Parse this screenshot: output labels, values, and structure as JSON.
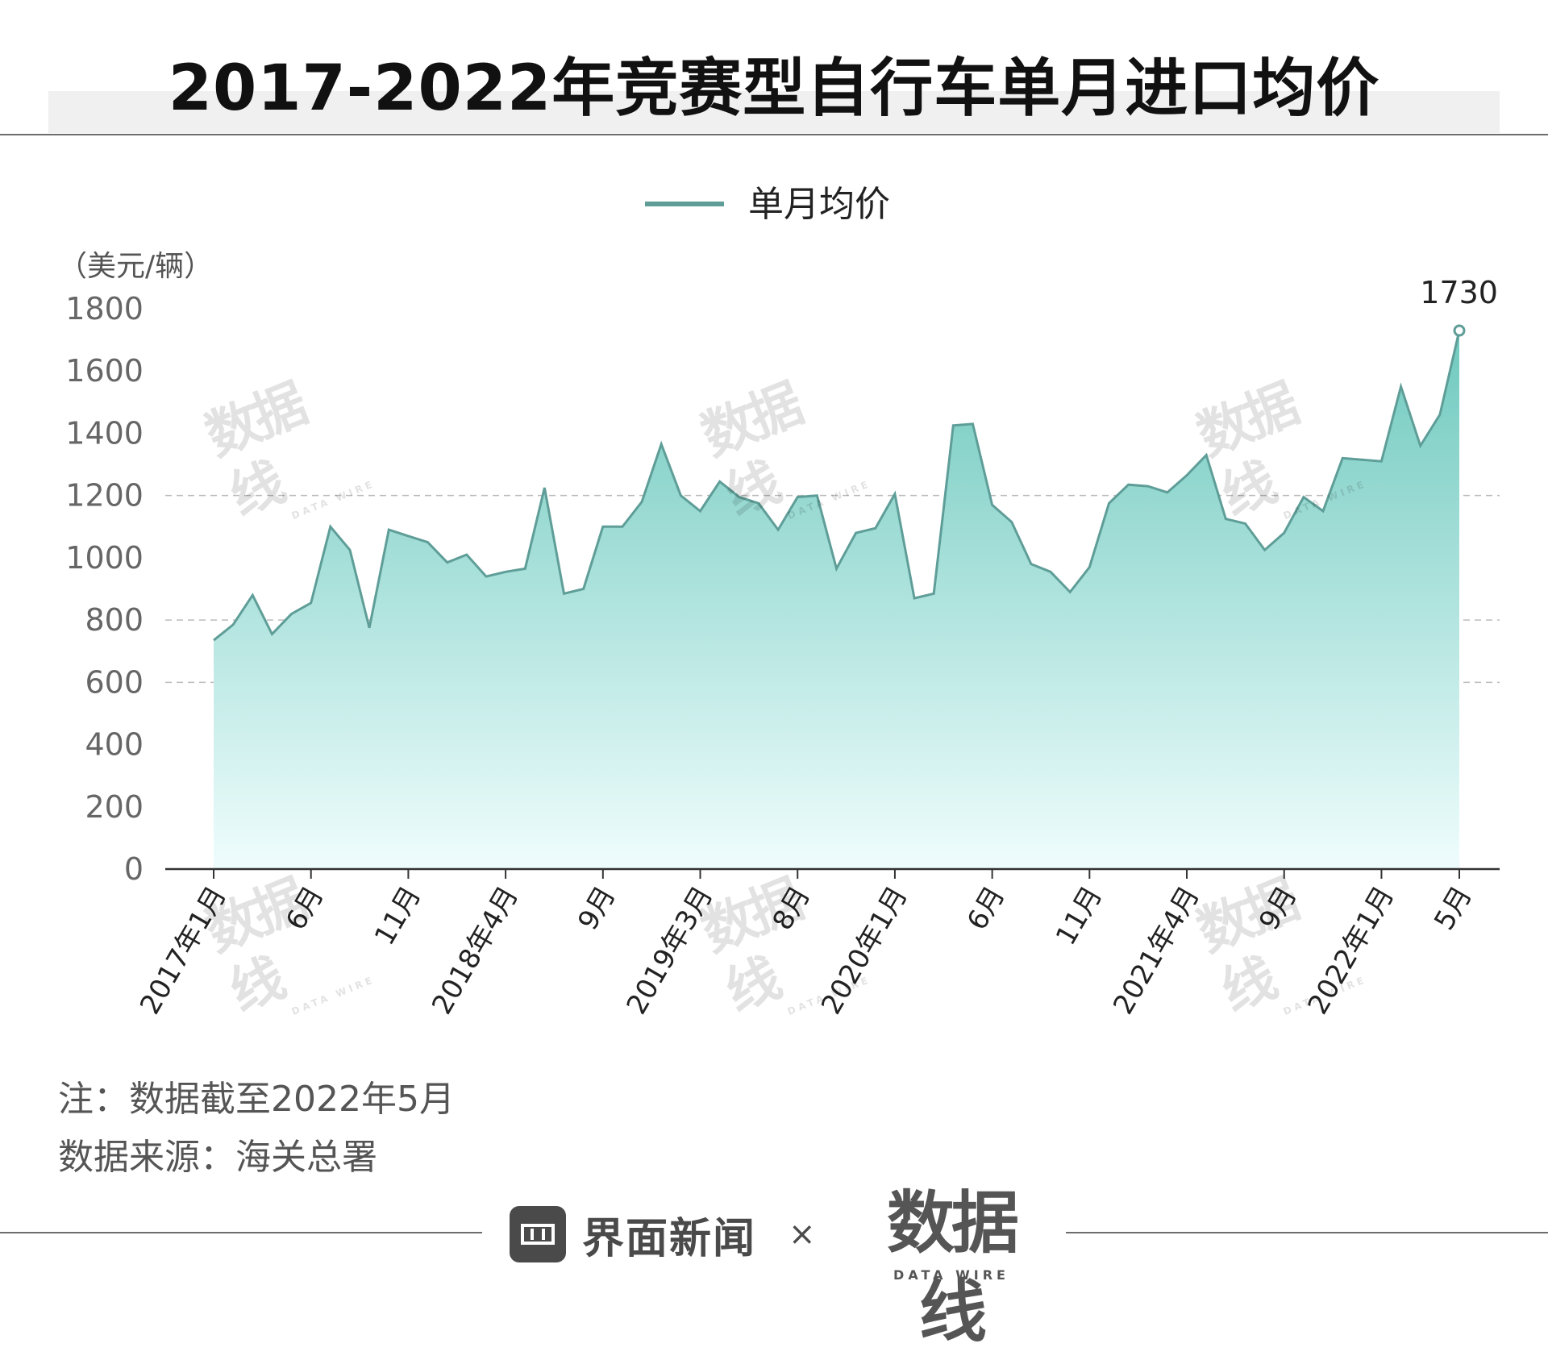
{
  "title": "2017-2022年竞赛型自行车单月进口均价",
  "notes": {
    "line1": "注：数据截至2022年5月",
    "line2": "数据来源：海关总署"
  },
  "footer": {
    "brand": "界面新闻",
    "times": "×",
    "datawire": "数据线",
    "datawire_sub": "DATA WIRE"
  },
  "watermark": {
    "main": "数据线",
    "sub": "DATA WIRE"
  },
  "colors": {
    "line": "#5f9e98",
    "fill_top": "#6fc9be",
    "fill_bottom": "#effdfd",
    "axis": "#333333",
    "grid": "#bbbbbb",
    "tick_text": "#666666"
  },
  "chart_data": {
    "type": "area",
    "unit_label": "（美元/辆）",
    "legend": {
      "label": "单月均价",
      "position": "top-center"
    },
    "ylim": [
      0,
      1800
    ],
    "yticks": [
      "0",
      "200",
      "400",
      "600",
      "800",
      "1000",
      "1200",
      "1400",
      "1600",
      "1800"
    ],
    "grid_lines": [
      600,
      800,
      1200
    ],
    "x_labels": [
      {
        "index": 0,
        "label": "2017年1月"
      },
      {
        "index": 5,
        "label": "6月"
      },
      {
        "index": 10,
        "label": "11月"
      },
      {
        "index": 15,
        "label": "2018年4月"
      },
      {
        "index": 20,
        "label": "9月"
      },
      {
        "index": 25,
        "label": "2019年3月"
      },
      {
        "index": 30,
        "label": "8月"
      },
      {
        "index": 35,
        "label": "2020年1月"
      },
      {
        "index": 40,
        "label": "6月"
      },
      {
        "index": 45,
        "label": "11月"
      },
      {
        "index": 50,
        "label": "2021年4月"
      },
      {
        "index": 55,
        "label": "9月"
      },
      {
        "index": 60,
        "label": "2022年1月"
      },
      {
        "index": 64,
        "label": "5月"
      }
    ],
    "series": [
      {
        "name": "单月均价",
        "values": [
          735,
          785,
          880,
          755,
          820,
          855,
          1100,
          1025,
          775,
          1090,
          1070,
          1050,
          985,
          1010,
          940,
          955,
          965,
          1225,
          885,
          900,
          1100,
          1100,
          1180,
          1365,
          1200,
          1150,
          1245,
          1195,
          1175,
          1090,
          1195,
          1200,
          965,
          1080,
          1095,
          1205,
          870,
          885,
          1425,
          1430,
          1170,
          1115,
          980,
          955,
          890,
          970,
          1175,
          1235,
          1230,
          1210,
          1265,
          1330,
          1125,
          1110,
          1025,
          1080,
          1195,
          1150,
          1320,
          1315,
          1310,
          1550,
          1360,
          1460,
          1730
        ]
      }
    ],
    "annotation": {
      "index": 64,
      "label": "1730"
    }
  }
}
